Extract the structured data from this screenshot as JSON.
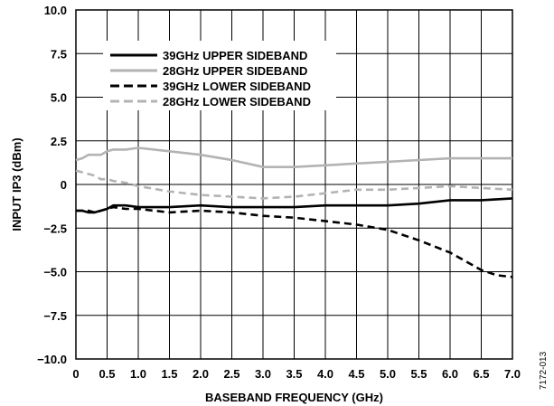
{
  "chart_data": {
    "type": "line",
    "xlabel": "BASEBAND FREQUENCY (GHz)",
    "ylabel": "INPUT IP3 (dBm)",
    "xlim": [
      0,
      7.0
    ],
    "ylim": [
      -10.0,
      10.0
    ],
    "x_ticks": [
      0,
      0.5,
      1.0,
      1.5,
      2.0,
      2.5,
      3.0,
      3.5,
      4.0,
      4.5,
      5.0,
      5.5,
      6.0,
      6.5,
      7.0
    ],
    "x_tick_labels": [
      "0",
      "0.5",
      "1.0",
      "1.5",
      "2.0",
      "2.5",
      "3.0",
      "3.5",
      "4.0",
      "4.5",
      "5.0",
      "5.5",
      "6.0",
      "6.5",
      "7.0"
    ],
    "y_ticks": [
      10.0,
      7.5,
      5.0,
      2.5,
      0,
      -2.5,
      -5.0,
      -7.5,
      -10.0
    ],
    "y_tick_labels": [
      "10.0",
      "7.5",
      "5.0",
      "2.5",
      "0",
      "−2.5",
      "−5.0",
      "−7.5",
      "−10.0"
    ],
    "grid": true,
    "legend_position": "top-left",
    "figure_id": "7172-013",
    "series": [
      {
        "name": "39GHz UPPER SIDEBAND",
        "color": "#000000",
        "dash": "solid",
        "x": [
          0,
          0.1,
          0.2,
          0.3,
          0.4,
          0.5,
          0.6,
          0.8,
          1.0,
          1.5,
          2.0,
          2.5,
          3.0,
          3.5,
          4.0,
          4.5,
          5.0,
          5.5,
          6.0,
          6.5,
          7.0
        ],
        "y": [
          -1.5,
          -1.5,
          -1.6,
          -1.6,
          -1.5,
          -1.4,
          -1.2,
          -1.2,
          -1.3,
          -1.3,
          -1.2,
          -1.3,
          -1.3,
          -1.3,
          -1.2,
          -1.2,
          -1.2,
          -1.1,
          -0.9,
          -0.9,
          -0.8
        ]
      },
      {
        "name": "28GHz UPPER SIDEBAND",
        "color": "#b3b3b3",
        "dash": "solid",
        "x": [
          0,
          0.1,
          0.2,
          0.3,
          0.4,
          0.5,
          0.6,
          0.8,
          1.0,
          1.5,
          2.0,
          2.5,
          3.0,
          3.5,
          4.0,
          4.5,
          5.0,
          5.5,
          6.0,
          6.5,
          7.0
        ],
        "y": [
          1.4,
          1.5,
          1.7,
          1.7,
          1.7,
          1.9,
          2.0,
          2.0,
          2.1,
          1.9,
          1.7,
          1.4,
          1.0,
          1.0,
          1.1,
          1.2,
          1.3,
          1.4,
          1.5,
          1.5,
          1.5
        ]
      },
      {
        "name": "39GHz LOWER SIDEBAND",
        "color": "#000000",
        "dash": "dashed",
        "x": [
          0,
          0.1,
          0.2,
          0.3,
          0.4,
          0.5,
          0.6,
          0.8,
          1.0,
          1.5,
          2.0,
          2.5,
          3.0,
          3.5,
          4.0,
          4.5,
          5.0,
          5.5,
          6.0,
          6.5,
          6.75,
          7.0
        ],
        "y": [
          -1.5,
          -1.5,
          -1.5,
          -1.6,
          -1.5,
          -1.4,
          -1.3,
          -1.4,
          -1.4,
          -1.6,
          -1.5,
          -1.6,
          -1.8,
          -1.9,
          -2.1,
          -2.3,
          -2.6,
          -3.2,
          -3.9,
          -4.9,
          -5.2,
          -5.3
        ]
      },
      {
        "name": "28GHz LOWER SIDEBAND",
        "color": "#b3b3b3",
        "dash": "dashed",
        "x": [
          0,
          0.1,
          0.2,
          0.3,
          0.4,
          0.5,
          0.6,
          0.8,
          1.0,
          1.5,
          2.0,
          2.5,
          3.0,
          3.5,
          4.0,
          4.5,
          5.0,
          5.5,
          6.0,
          6.5,
          7.0
        ],
        "y": [
          0.8,
          0.7,
          0.6,
          0.5,
          0.3,
          0.3,
          0.2,
          0.1,
          -0.1,
          -0.4,
          -0.6,
          -0.7,
          -0.8,
          -0.7,
          -0.5,
          -0.3,
          -0.3,
          -0.2,
          -0.1,
          -0.2,
          -0.3
        ]
      }
    ]
  }
}
